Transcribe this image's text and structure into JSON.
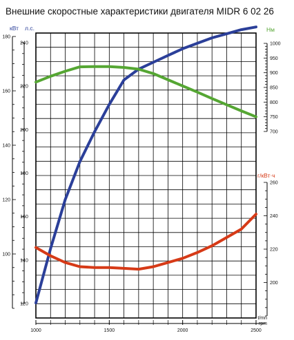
{
  "chart_data": {
    "type": "line",
    "title": "Внешние скоростные характеристики двигателя MIDR 6 02 26",
    "x": {
      "label_top": "t/mn",
      "label_bottom": "rpm",
      "min": 1000,
      "max": 2500,
      "ticks": [
        1000,
        1500,
        2000,
        2500
      ],
      "tick_labels": [
        "1000",
        "1500",
        "2000",
        "2500"
      ]
    },
    "axes": {
      "kw": {
        "label": "кВт",
        "color": "#2b3f99",
        "min": 80,
        "max": 180,
        "ticks": [
          100,
          120,
          140,
          160,
          180
        ],
        "tick_labels": [
          "100",
          "120",
          "140",
          "160",
          "180"
        ]
      },
      "hp": {
        "label": "л.с.",
        "color": "#2b3f99",
        "min": 120,
        "max": 240,
        "ticks": [
          120,
          140,
          160,
          180,
          200,
          220,
          240
        ],
        "tick_labels": [
          "120",
          "140",
          "160",
          "180",
          "200",
          "220",
          "240"
        ]
      },
      "nm": {
        "label": "Нм",
        "color": "#55a633",
        "min": 700,
        "max": 1000,
        "ticks": [
          700,
          750,
          800,
          850,
          900,
          950,
          1000
        ],
        "tick_labels": [
          "700",
          "750",
          "800",
          "850",
          "900",
          "950",
          "1000"
        ]
      },
      "sfc": {
        "label": "г/кВт·ч",
        "color": "#d63a17",
        "min": 180,
        "max": 260,
        "ticks": [
          200,
          220,
          240,
          260
        ],
        "tick_labels": [
          "200",
          "220",
          "240",
          "260"
        ]
      }
    },
    "series": [
      {
        "axis": "kw",
        "color": "#2b3f99",
        "x": [
          1000,
          1100,
          1200,
          1300,
          1400,
          1500,
          1600,
          1700,
          1800,
          1900,
          2000,
          2100,
          2200,
          2300,
          2400,
          2500
        ],
        "values": [
          82,
          102,
          120,
          134,
          145,
          155,
          164,
          168,
          170.5,
          173,
          175.5,
          177.5,
          179.5,
          181,
          182.5,
          183.5
        ]
      },
      {
        "axis": "nm",
        "color": "#55a633",
        "x": [
          1000,
          1100,
          1200,
          1300,
          1400,
          1500,
          1600,
          1700,
          1800,
          1900,
          2000,
          2100,
          2200,
          2300,
          2400,
          2500
        ],
        "values": [
          868,
          888,
          905,
          920,
          921,
          921,
          918,
          912,
          897,
          876,
          855,
          834,
          812,
          791,
          770,
          750
        ]
      },
      {
        "axis": "sfc",
        "color": "#d63a17",
        "x": [
          1000,
          1100,
          1200,
          1300,
          1400,
          1500,
          1600,
          1700,
          1800,
          1900,
          2000,
          2100,
          2200,
          2300,
          2400,
          2500
        ],
        "values": [
          221,
          216,
          212,
          209.5,
          209,
          209,
          208.5,
          208,
          209.5,
          212,
          214.5,
          218,
          222,
          227,
          232,
          241
        ]
      }
    ],
    "grid": true
  }
}
